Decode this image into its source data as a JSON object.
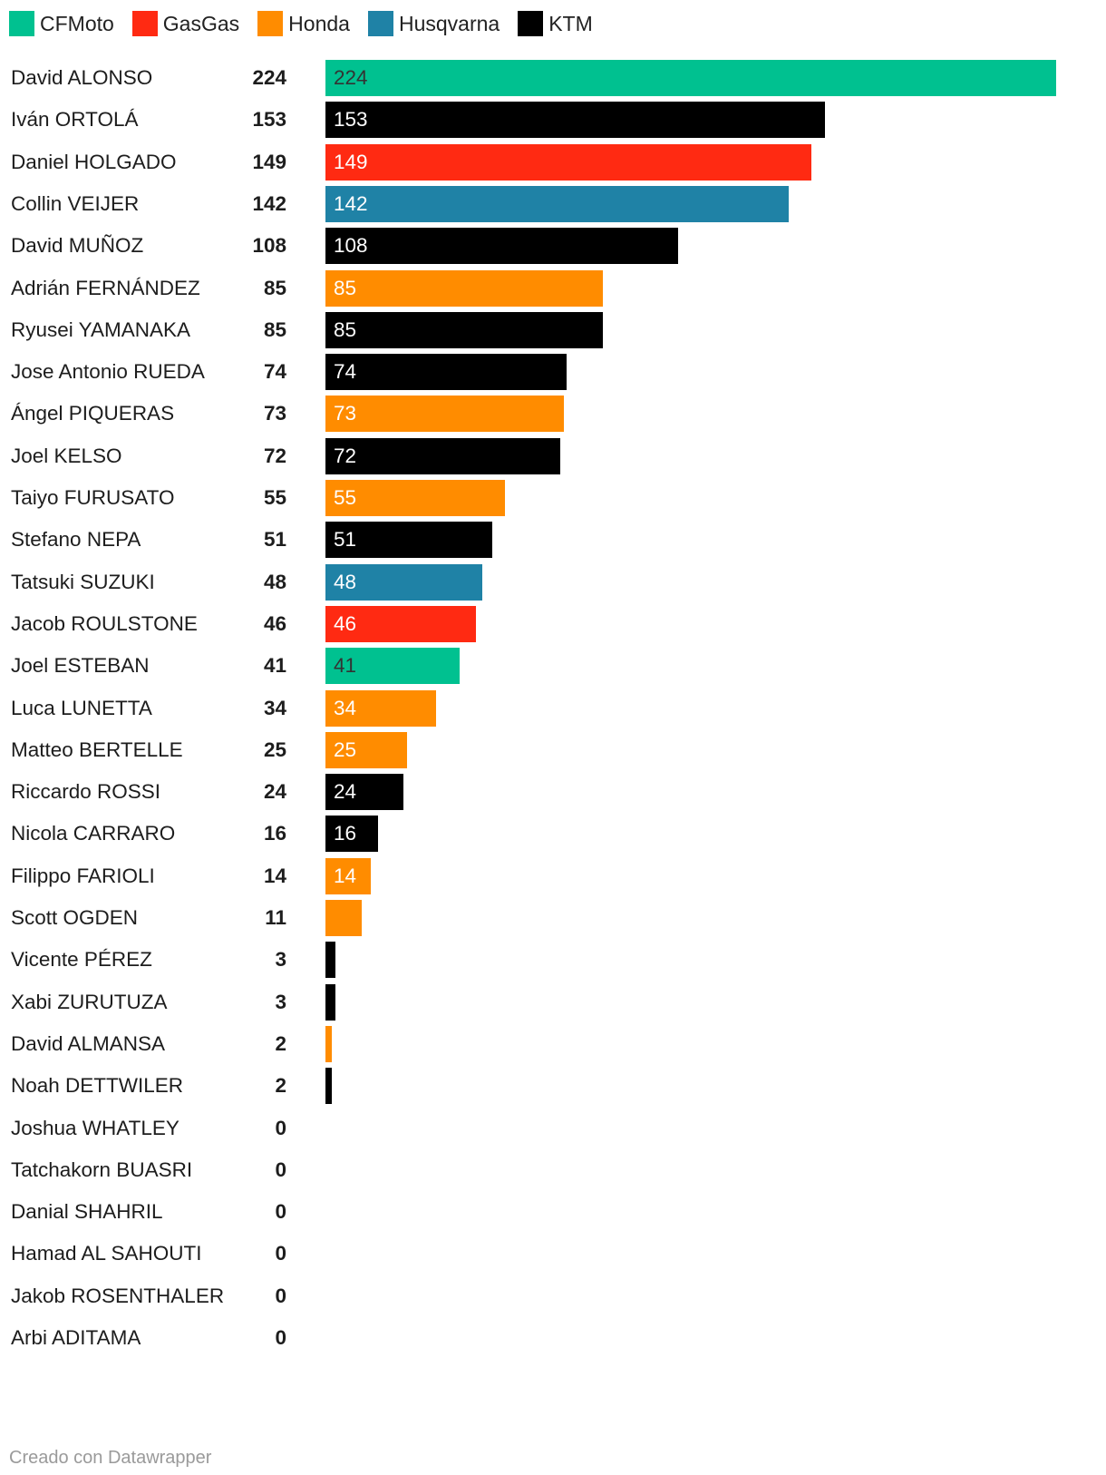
{
  "legend": [
    {
      "label": "CFMoto",
      "color": "#00c190"
    },
    {
      "label": "GasGas",
      "color": "#ff2a12"
    },
    {
      "label": "Honda",
      "color": "#ff8c00"
    },
    {
      "label": "Husqvarna",
      "color": "#1f82a6"
    },
    {
      "label": "KTM",
      "color": "#000000"
    }
  ],
  "chart_data": {
    "type": "bar",
    "orientation": "horizontal",
    "xlim": [
      0,
      224
    ],
    "categories": [
      "David ALONSO",
      "Iván ORTOLÁ",
      "Daniel HOLGADO",
      "Collin VEIJER",
      "David MUÑOZ",
      "Adrián FERNÁNDEZ",
      "Ryusei YAMANAKA",
      "Jose Antonio RUEDA",
      "Ángel PIQUERAS",
      "Joel KELSO",
      "Taiyo FURUSATO",
      "Stefano NEPA",
      "Tatsuki SUZUKI",
      "Jacob ROULSTONE",
      "Joel ESTEBAN",
      "Luca LUNETTA",
      "Matteo BERTELLE",
      "Riccardo ROSSI",
      "Nicola CARRARO",
      "Filippo FARIOLI",
      "Scott OGDEN",
      "Vicente PÉREZ",
      "Xabi ZURUTUZA",
      "David ALMANSA",
      "Noah DETTWILER",
      "Joshua WHATLEY",
      "Tatchakorn BUASRI",
      "Danial SHAHRIL",
      "Hamad AL SAHOUTI",
      "Jakob ROSENTHALER",
      "Arbi ADITAMA"
    ],
    "values": [
      224,
      153,
      149,
      142,
      108,
      85,
      85,
      74,
      73,
      72,
      55,
      51,
      48,
      46,
      41,
      34,
      25,
      24,
      16,
      14,
      11,
      3,
      3,
      2,
      2,
      0,
      0,
      0,
      0,
      0,
      0
    ],
    "brands": [
      "CFMoto",
      "KTM",
      "GasGas",
      "Husqvarna",
      "KTM",
      "Honda",
      "KTM",
      "KTM",
      "Honda",
      "KTM",
      "Honda",
      "KTM",
      "Husqvarna",
      "GasGas",
      "CFMoto",
      "Honda",
      "Honda",
      "KTM",
      "KTM",
      "Honda",
      "Honda",
      "KTM",
      "KTM",
      "Honda",
      "KTM",
      "",
      "",
      "",
      "",
      "",
      ""
    ],
    "bar_label_colors": {
      "CFMoto": "#333333",
      "GasGas": "#ffffff",
      "Honda": "#ffffff",
      "Husqvarna": "#ffffff",
      "KTM": "#ffffff"
    }
  },
  "footer": "Creado con Datawrapper"
}
